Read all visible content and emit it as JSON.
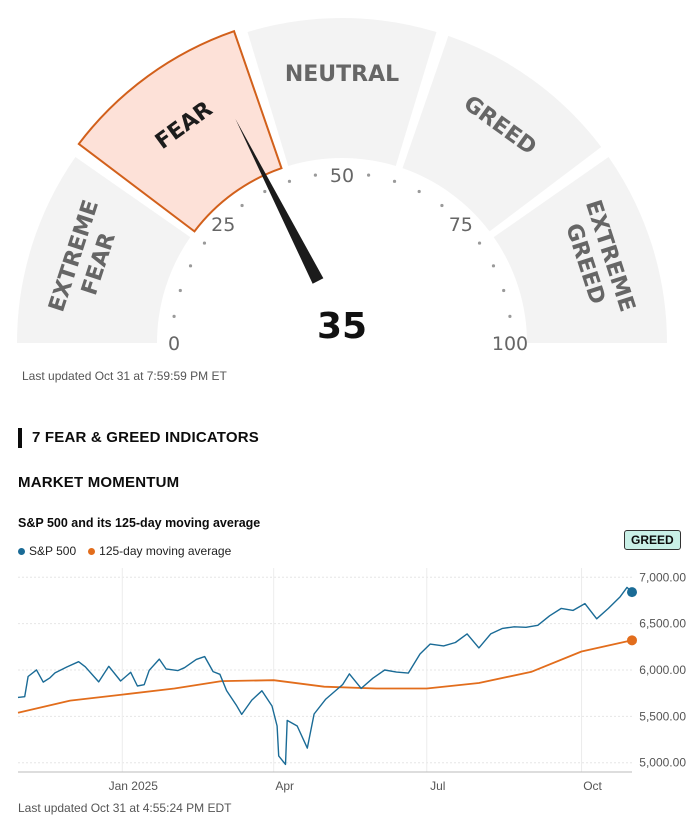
{
  "gauge": {
    "score": "35",
    "segments": [
      {
        "label": "EXTREME\nFEAR",
        "active": false
      },
      {
        "label": "FEAR",
        "active": true
      },
      {
        "label": "NEUTRAL",
        "active": false
      },
      {
        "label": "GREED",
        "active": false
      },
      {
        "label": "EXTREME\nGREED",
        "active": false
      }
    ],
    "ticks": [
      "0",
      "25",
      "50",
      "75",
      "100"
    ],
    "colors": {
      "inactive": "#f3f3f3",
      "active_fill": "#fde1d8",
      "active_stroke": "#d2601b",
      "label": "#666666",
      "needle": "#1b1b1b"
    }
  },
  "gauge_updated": "Last updated Oct 31 at 7:59:59 PM ET",
  "section_title": "7 FEAR & GREED INDICATORS",
  "indicator_title": "MARKET MOMENTUM",
  "chart_title": "S&P 500 and its 125-day moving average",
  "rating_badge": "GREED",
  "chart_updated": "Last updated Oct 31 at 4:55:24 PM EDT",
  "chart_data": {
    "type": "line",
    "x_ticks": [
      "Jan 2025",
      "Apr",
      "Jul",
      "Oct"
    ],
    "y_ticks": [
      "5,000.00",
      "5,500.00",
      "6,000.00",
      "6,500.00",
      "7,000.00"
    ],
    "ylim": [
      4900,
      7100
    ],
    "x_range": [
      "2024-10-31",
      "2025-10-31"
    ],
    "series": [
      {
        "name": "S&P 500",
        "color": "#1a6b96",
        "points": [
          [
            "2024-10-31",
            5705
          ],
          [
            "2024-11-04",
            5712
          ],
          [
            "2024-11-06",
            5930
          ],
          [
            "2024-11-11",
            6001
          ],
          [
            "2024-11-15",
            5870
          ],
          [
            "2024-11-19",
            5916
          ],
          [
            "2024-11-22",
            5969
          ],
          [
            "2024-11-29",
            6032
          ],
          [
            "2024-12-06",
            6090
          ],
          [
            "2024-12-10",
            6034
          ],
          [
            "2024-12-18",
            5872
          ],
          [
            "2024-12-24",
            6040
          ],
          [
            "2024-12-31",
            5881
          ],
          [
            "2025-01-06",
            5975
          ],
          [
            "2025-01-10",
            5827
          ],
          [
            "2025-01-14",
            5842
          ],
          [
            "2025-01-17",
            5997
          ],
          [
            "2025-01-23",
            6118
          ],
          [
            "2025-01-27",
            6012
          ],
          [
            "2025-02-03",
            5994
          ],
          [
            "2025-02-07",
            6025
          ],
          [
            "2025-02-14",
            6114
          ],
          [
            "2025-02-19",
            6144
          ],
          [
            "2025-02-24",
            5983
          ],
          [
            "2025-02-28",
            5954
          ],
          [
            "2025-03-04",
            5778
          ],
          [
            "2025-03-10",
            5614
          ],
          [
            "2025-03-13",
            5521
          ],
          [
            "2025-03-19",
            5675
          ],
          [
            "2025-03-25",
            5776
          ],
          [
            "2025-03-31",
            5612
          ],
          [
            "2025-04-03",
            5396
          ],
          [
            "2025-04-04",
            5074
          ],
          [
            "2025-04-08",
            4982
          ],
          [
            "2025-04-09",
            5456
          ],
          [
            "2025-04-15",
            5396
          ],
          [
            "2025-04-21",
            5158
          ],
          [
            "2025-04-25",
            5525
          ],
          [
            "2025-05-02",
            5686
          ],
          [
            "2025-05-12",
            5844
          ],
          [
            "2025-05-16",
            5958
          ],
          [
            "2025-05-23",
            5802
          ],
          [
            "2025-05-30",
            5912
          ],
          [
            "2025-06-06",
            6000
          ],
          [
            "2025-06-13",
            5977
          ],
          [
            "2025-06-20",
            5967
          ],
          [
            "2025-06-27",
            6173
          ],
          [
            "2025-07-03",
            6279
          ],
          [
            "2025-07-11",
            6260
          ],
          [
            "2025-07-18",
            6297
          ],
          [
            "2025-07-25",
            6389
          ],
          [
            "2025-08-01",
            6238
          ],
          [
            "2025-08-08",
            6389
          ],
          [
            "2025-08-15",
            6449
          ],
          [
            "2025-08-22",
            6466
          ],
          [
            "2025-08-29",
            6460
          ],
          [
            "2025-09-05",
            6482
          ],
          [
            "2025-09-12",
            6584
          ],
          [
            "2025-09-19",
            6664
          ],
          [
            "2025-09-26",
            6643
          ],
          [
            "2025-10-03",
            6716
          ],
          [
            "2025-10-10",
            6552
          ],
          [
            "2025-10-17",
            6664
          ],
          [
            "2025-10-24",
            6791
          ],
          [
            "2025-10-28",
            6891
          ],
          [
            "2025-10-31",
            6840
          ]
        ]
      },
      {
        "name": "125-day moving average",
        "color": "#e26d1c",
        "points": [
          [
            "2024-10-31",
            5540
          ],
          [
            "2024-12-01",
            5670
          ],
          [
            "2025-01-01",
            5735
          ],
          [
            "2025-02-01",
            5800
          ],
          [
            "2025-03-01",
            5880
          ],
          [
            "2025-04-01",
            5890
          ],
          [
            "2025-05-01",
            5820
          ],
          [
            "2025-06-01",
            5800
          ],
          [
            "2025-07-01",
            5800
          ],
          [
            "2025-08-01",
            5860
          ],
          [
            "2025-09-01",
            5980
          ],
          [
            "2025-10-01",
            6200
          ],
          [
            "2025-10-31",
            6320
          ]
        ]
      }
    ]
  }
}
